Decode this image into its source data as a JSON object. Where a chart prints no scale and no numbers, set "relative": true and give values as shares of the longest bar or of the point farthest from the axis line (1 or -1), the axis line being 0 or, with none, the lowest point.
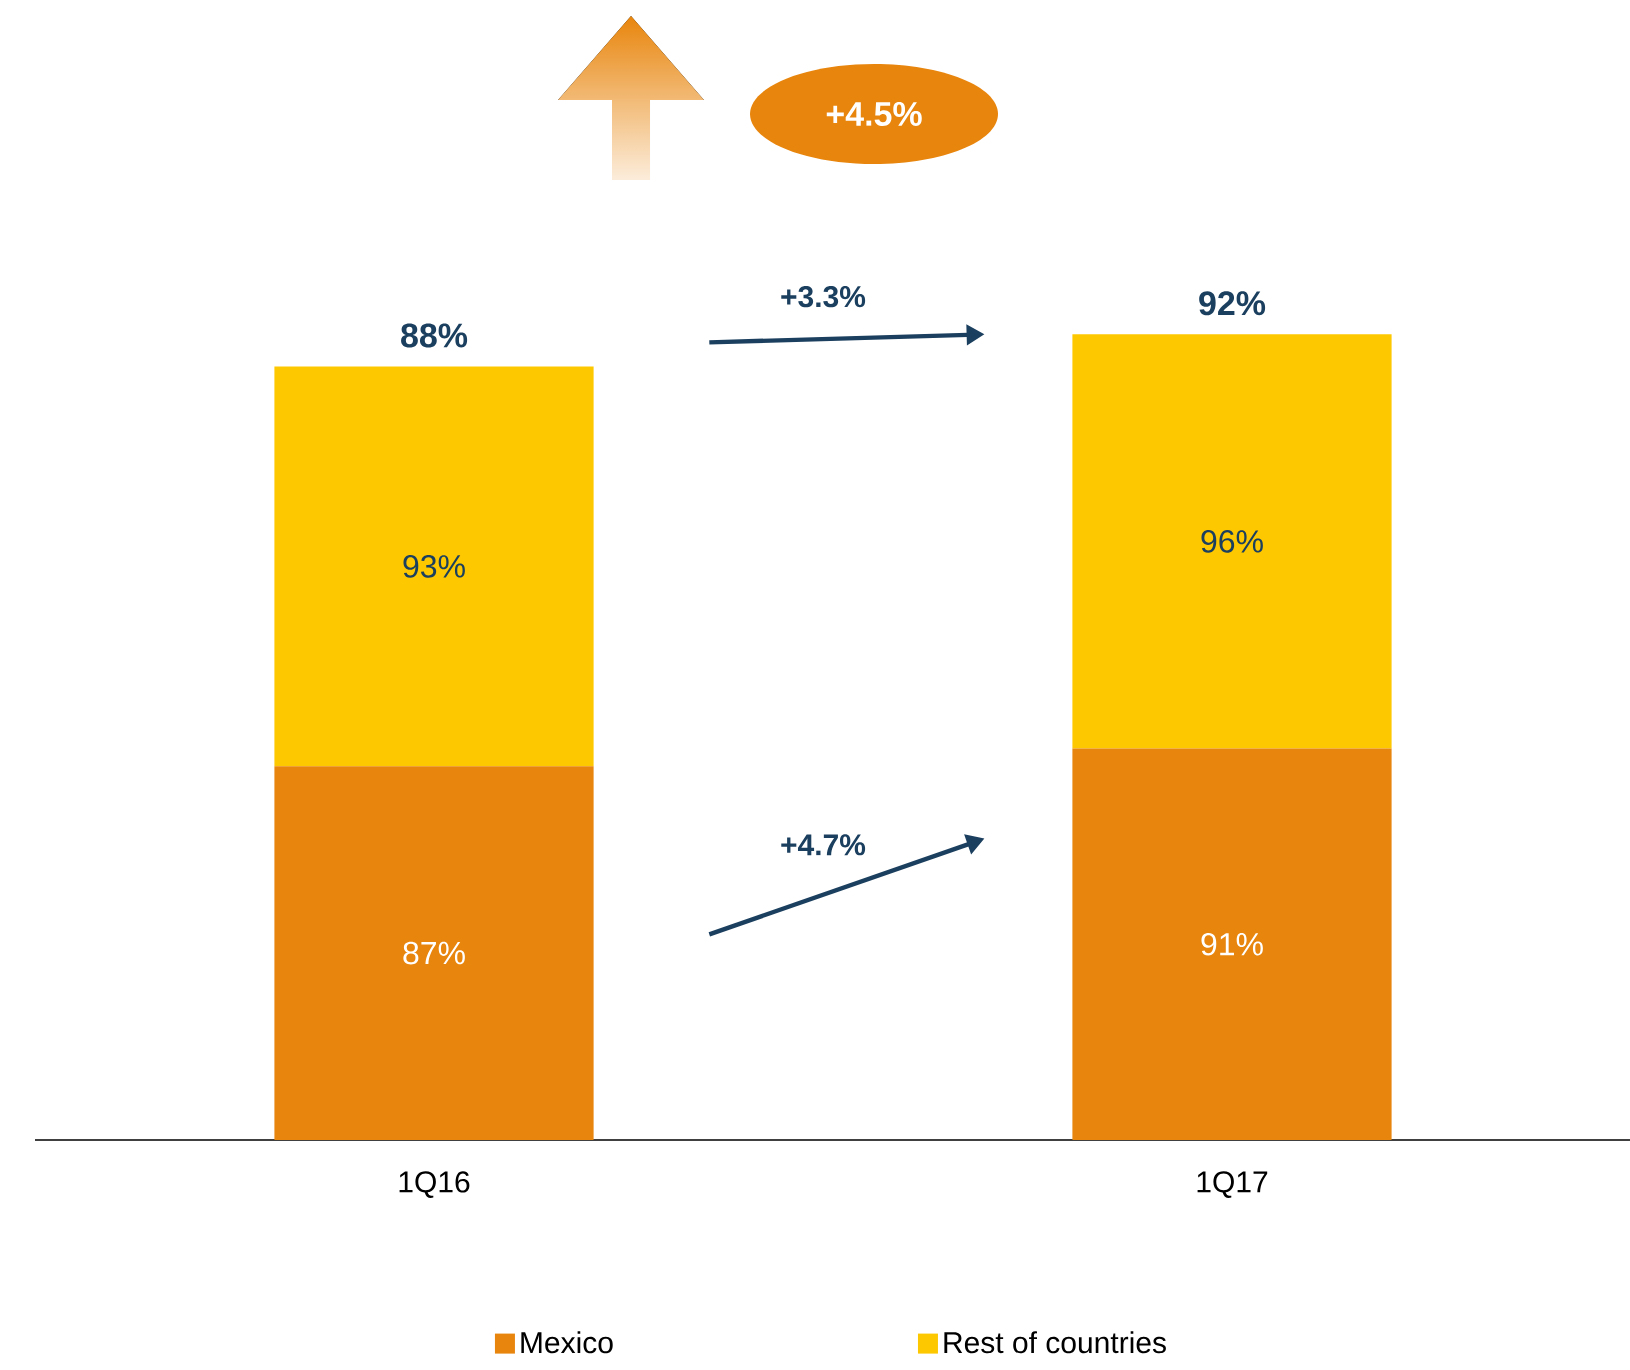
{
  "chart_data": {
    "type": "bar",
    "stacked": true,
    "relative": true,
    "legend": "bottom",
    "categories": [
      "1Q16",
      "1Q17"
    ],
    "series": [
      {
        "name": "Mexico",
        "color": "#e8850c",
        "values": [
          0.464,
          0.486
        ]
      },
      {
        "name": "Rest of countries",
        "color": "#fdc800",
        "values": [
          0.496,
          0.514
        ]
      }
    ],
    "annotations": [
      "+4.5%",
      "+3.3%",
      "+4.7%",
      "87%",
      "93%",
      "88%",
      "91%",
      "96%",
      "92%"
    ]
  }
}
